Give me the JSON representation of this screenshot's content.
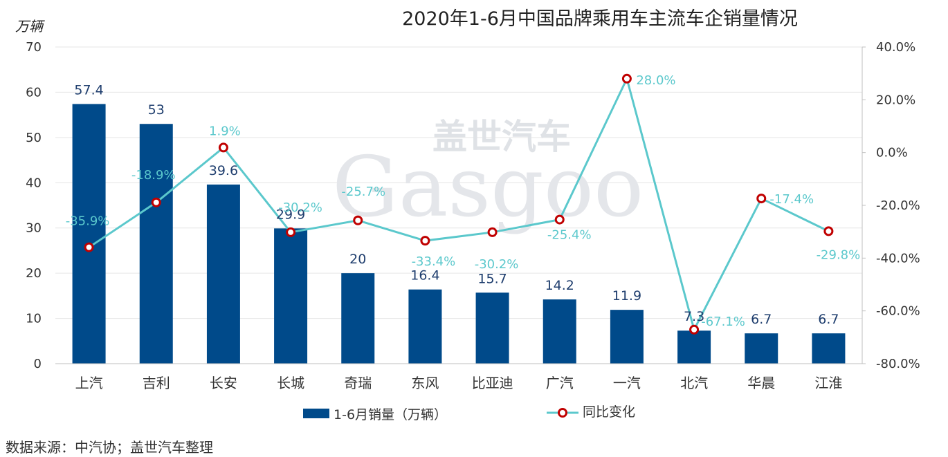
{
  "title": "2020年1-6月中国品牌乘用车主流车企销量情况",
  "watermark": {
    "cn": "盖世汽车",
    "en": "Gasgoo"
  },
  "source": "数据来源：中汽协；盖世汽车整理",
  "colors": {
    "bar": "#004a8a",
    "line": "#5bc8cc",
    "marker": "#c00000",
    "grid": "#e6e6e6"
  },
  "chart_data": {
    "type": "bar",
    "categories": [
      "上汽",
      "吉利",
      "长安",
      "长城",
      "奇瑞",
      "东风",
      "比亚迪",
      "广汽",
      "一汽",
      "北汽",
      "华晨",
      "江淮"
    ],
    "series": [
      {
        "name": "1-6月销量（万辆）",
        "type": "bar",
        "axis": "left",
        "values": [
          57.4,
          53,
          39.6,
          29.9,
          20,
          16.4,
          15.7,
          14.2,
          11.9,
          7.3,
          6.7,
          6.7
        ],
        "labels": [
          "57.4",
          "53",
          "39.6",
          "29.9",
          "20",
          "16.4",
          "15.7",
          "14.2",
          "11.9",
          "7.3",
          "6.7",
          "6.7"
        ]
      },
      {
        "name": "同比变化",
        "type": "line",
        "axis": "right",
        "values": [
          -35.9,
          -18.9,
          1.9,
          -30.2,
          -25.7,
          -33.4,
          -30.2,
          -25.4,
          28.0,
          -67.1,
          -17.4,
          -29.8
        ],
        "labels": [
          "-35.9%",
          "-18.9%",
          "1.9%",
          "-30.2%",
          "-25.7%",
          "-33.4%",
          "-30.2%",
          "-25.4%",
          "28.0%",
          "-67.1%",
          "-17.4%",
          "-29.8%"
        ]
      }
    ],
    "y_left": {
      "label": "万辆",
      "min": 0,
      "max": 70,
      "ticks": [
        0,
        10,
        20,
        30,
        40,
        50,
        60,
        70
      ],
      "tick_labels": [
        "0",
        "10",
        "20",
        "30",
        "40",
        "50",
        "60",
        "70"
      ]
    },
    "y_right": {
      "min": -80,
      "max": 40,
      "ticks": [
        -80,
        -60,
        -40,
        -20,
        0,
        20,
        40
      ],
      "tick_labels": [
        "-80.0%",
        "-60.0%",
        "-40.0%",
        "-20.0%",
        "0.0%",
        "20.0%",
        "40.0%"
      ]
    },
    "grid": true,
    "legend_position": "bottom"
  }
}
